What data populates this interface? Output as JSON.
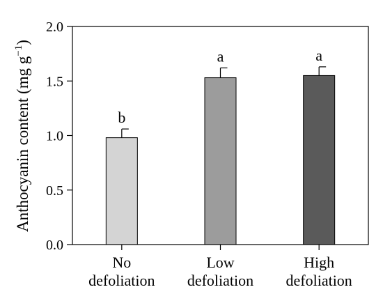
{
  "chart_data": {
    "type": "bar",
    "categories": [
      [
        "No",
        "defoliation"
      ],
      [
        "Low",
        "defoliation"
      ],
      [
        "High",
        "defoliation"
      ]
    ],
    "values": [
      0.98,
      1.53,
      1.55
    ],
    "errors": [
      0.08,
      0.09,
      0.08
    ],
    "significance_letters": [
      "b",
      "a",
      "a"
    ],
    "bar_colors": [
      "#d4d4d4",
      "#9c9c9c",
      "#5a5a5a"
    ],
    "ylabel": "Anthocyanin content (mg g",
    "ylabel_superscript": "−1",
    "ylabel_close": ")",
    "ylim": [
      0.0,
      2.0
    ],
    "yticks": [
      0.0,
      0.5,
      1.0,
      1.5,
      2.0
    ],
    "ytick_labels": [
      "0.0",
      "0.5",
      "1.0",
      "1.5",
      "2.0"
    ],
    "grid": false,
    "legend": "none"
  }
}
